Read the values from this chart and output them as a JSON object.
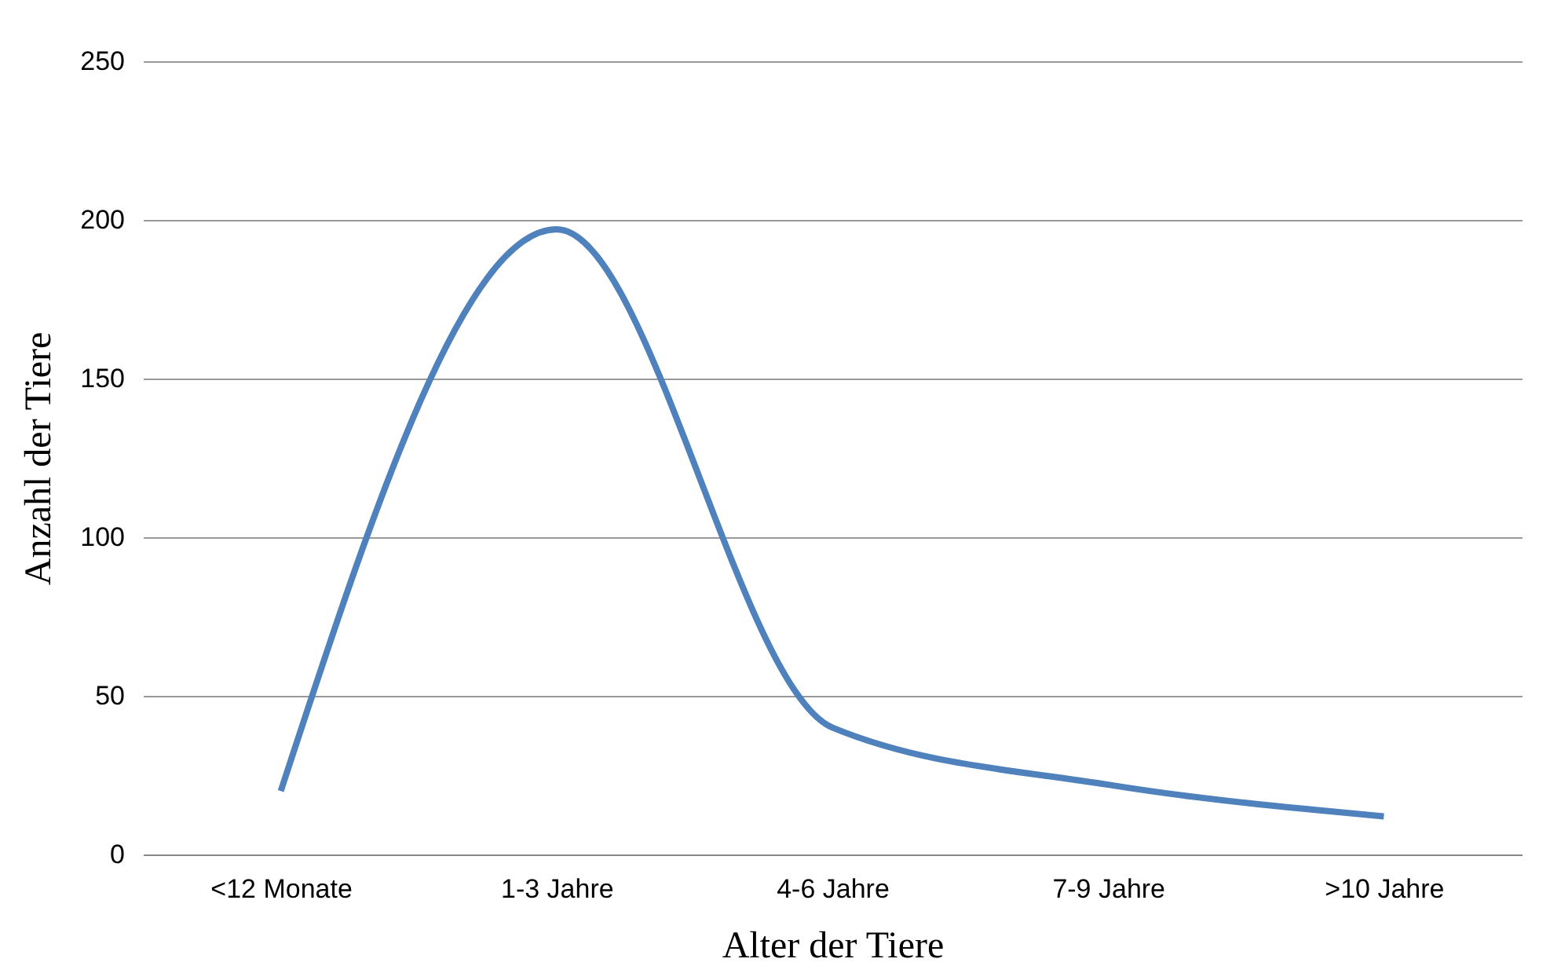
{
  "chart_data": {
    "type": "line",
    "xlabel": "Alter der Tiere",
    "ylabel": "Anzahl der Tiere",
    "categories": [
      "<12 Monate",
      "1-3 Jahre",
      "4-6 Jahre",
      "7-9 Jahre",
      ">10 Jahre"
    ],
    "series": [
      {
        "color": "#4f81bd",
        "values": [
          20,
          197,
          40,
          22,
          12
        ]
      }
    ],
    "ylim": [
      0,
      250
    ],
    "yticks": [
      0,
      50,
      100,
      150,
      200,
      250
    ],
    "grid": "y",
    "marker": "none",
    "line_style": "solid"
  }
}
